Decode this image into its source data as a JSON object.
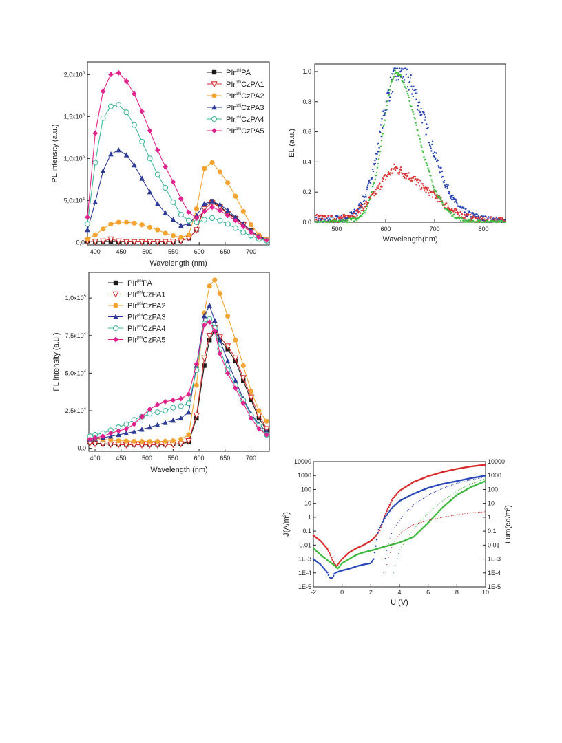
{
  "chart_data": [
    {
      "type": "line",
      "xlabel": "Wavelength (nm)",
      "ylabel": "PL intensity  (a.u.)",
      "xlim": [
        385,
        735
      ],
      "ylim": [
        -3000,
        215000
      ],
      "xticks": [
        "400",
        "450",
        "500",
        "550",
        "600",
        "650",
        "700"
      ],
      "yticks": [
        {
          "v": 0,
          "t": "0,0"
        },
        {
          "v": 50000,
          "t": "5,0x10",
          "sup": "4"
        },
        {
          "v": 100000,
          "t": "1,0x10",
          "sup": "5"
        },
        {
          "v": 150000,
          "t": "1,5x10",
          "sup": "5"
        },
        {
          "v": 200000,
          "t": "2,0x10",
          "sup": "5"
        }
      ],
      "legend_position": "top-right",
      "x": [
        385,
        400,
        415,
        430,
        445,
        460,
        475,
        490,
        505,
        520,
        535,
        550,
        565,
        580,
        595,
        610,
        625,
        640,
        655,
        670,
        685,
        700,
        715,
        730
      ],
      "series": [
        {
          "name": "PIr",
          "sup": "phi",
          "name_rest": "PA",
          "color": "#1a1a1a",
          "marker": "square",
          "values": [
            1500,
            1000,
            1000,
            1200,
            1000,
            800,
            800,
            800,
            800,
            800,
            900,
            1200,
            2000,
            5000,
            15000,
            43000,
            49000,
            43000,
            35000,
            29000,
            22000,
            14000,
            7000,
            4000
          ]
        },
        {
          "name": "PIr",
          "sup": "phi",
          "name_rest": "CzPA1",
          "color": "#d2302d",
          "marker": "triangle-down-open",
          "values": [
            1500,
            1200,
            1500,
            4000,
            1500,
            800,
            800,
            800,
            800,
            800,
            900,
            1200,
            2000,
            5000,
            15000,
            40000,
            47000,
            42000,
            34000,
            28000,
            21000,
            13000,
            6000,
            3000
          ]
        },
        {
          "name": "PIr",
          "sup": "phi",
          "name_rest": "CzPA2",
          "color": "#f4a433",
          "marker": "circle",
          "values": [
            4000,
            9000,
            16000,
            22000,
            24000,
            24000,
            23000,
            21000,
            18000,
            15000,
            11000,
            8000,
            6000,
            9000,
            40000,
            88000,
            95000,
            84000,
            71000,
            55000,
            37000,
            21000,
            9000,
            4000
          ]
        },
        {
          "name": "PIr",
          "sup": "phi",
          "name_rest": "CzPA3",
          "color": "#2e3b96",
          "marker": "triangle",
          "values": [
            15000,
            48000,
            85000,
            105000,
            110000,
            104000,
            92000,
            76000,
            60000,
            46000,
            35000,
            27000,
            20000,
            22000,
            32000,
            46000,
            49000,
            45000,
            38000,
            30000,
            22000,
            14000,
            7000,
            3000
          ]
        },
        {
          "name": "PIr",
          "sup": "phi",
          "name_rest": "CzPA4",
          "color": "#3fb89a",
          "marker": "circle-open",
          "values": [
            22000,
            95000,
            148000,
            162000,
            164000,
            155000,
            140000,
            120000,
            100000,
            81000,
            65000,
            48000,
            33000,
            26000,
            24000,
            27000,
            29000,
            26000,
            22000,
            17000,
            12000,
            8000,
            4000,
            2000
          ]
        },
        {
          "name": "PIr",
          "sup": "phi",
          "name_rest": "CzPA5",
          "color": "#e0238c",
          "marker": "diamond",
          "values": [
            30000,
            130000,
            180000,
            200000,
            202000,
            192000,
            177000,
            156000,
            133000,
            110000,
            90000,
            72000,
            52000,
            36000,
            29000,
            37000,
            42000,
            38000,
            32000,
            26000,
            19000,
            12000,
            6000,
            2500
          ]
        }
      ]
    },
    {
      "type": "scatter",
      "xlabel": "Wavelength(nm)",
      "ylabel": "EL (a.u.)",
      "xlim": [
        455,
        845
      ],
      "ylim": [
        0,
        1.05
      ],
      "xticks": [
        "500",
        "600",
        "700",
        "800"
      ],
      "yticks": [
        "0.0",
        "0.2",
        "0.4",
        "0.6",
        "0.8",
        "1.0"
      ],
      "series": [
        {
          "color": "#2542b0",
          "peak": 625,
          "width": 65,
          "amp": 1.0,
          "x": [
            460,
            480,
            500,
            520,
            540,
            560,
            580,
            600,
            610,
            620,
            630,
            640,
            650,
            660,
            680,
            700,
            720,
            740,
            760,
            780,
            800,
            820,
            840
          ],
          "values": [
            0.01,
            0.01,
            0.02,
            0.03,
            0.07,
            0.18,
            0.42,
            0.78,
            0.9,
            0.98,
            0.99,
            0.97,
            0.92,
            0.86,
            0.66,
            0.45,
            0.27,
            0.14,
            0.07,
            0.04,
            0.02,
            0.01,
            0.01
          ]
        },
        {
          "color": "#d83636",
          "peak": 625,
          "width": 80,
          "amp": 0.35,
          "x": [
            460,
            480,
            500,
            520,
            540,
            560,
            580,
            600,
            620,
            640,
            660,
            680,
            700,
            720,
            740,
            760,
            780,
            800
          ],
          "values": [
            0.03,
            0.02,
            0.02,
            0.03,
            0.06,
            0.12,
            0.2,
            0.3,
            0.36,
            0.32,
            0.28,
            0.22,
            0.18,
            0.12,
            0.07,
            0.04,
            0.02,
            0.01
          ]
        },
        {
          "color": "#3fbb3f",
          "peak": 620,
          "width": 45,
          "amp": 1.0,
          "x": [
            460,
            500,
            540,
            560,
            580,
            600,
            610,
            620,
            630,
            640,
            660,
            680,
            700,
            720,
            740,
            760,
            780,
            800,
            840
          ],
          "values": [
            0.0,
            0.0,
            0.02,
            0.08,
            0.3,
            0.72,
            0.92,
            1.0,
            0.97,
            0.9,
            0.68,
            0.42,
            0.22,
            0.1,
            0.04,
            0.01,
            0.0,
            0.0,
            0.0
          ]
        }
      ]
    },
    {
      "type": "line",
      "xlabel": "Wavelength  (nm)",
      "ylabel": "PL intensity  (a.u.)",
      "xlim": [
        388,
        735
      ],
      "ylim": [
        -2000,
        117000
      ],
      "xticks": [
        "400",
        "450",
        "500",
        "550",
        "600",
        "650",
        "700"
      ],
      "yticks": [
        {
          "v": 0,
          "t": "0,0"
        },
        {
          "v": 25000,
          "t": "2,5x10",
          "sup": "4"
        },
        {
          "v": 50000,
          "t": "5,0x10",
          "sup": "4"
        },
        {
          "v": 75000,
          "t": "7,5x10",
          "sup": "4"
        },
        {
          "v": 100000,
          "t": "1,0x10",
          "sup": "5"
        }
      ],
      "legend_position": "top-left",
      "x": [
        390,
        400,
        415,
        430,
        445,
        460,
        475,
        490,
        505,
        520,
        535,
        550,
        565,
        580,
        595,
        610,
        620,
        630,
        640,
        655,
        670,
        685,
        700,
        715,
        730
      ],
      "series": [
        {
          "name": "PIr",
          "sup": "phi",
          "name_rest": "PA",
          "color": "#1a1a1a",
          "marker": "square",
          "values": [
            4000,
            3500,
            3000,
            2800,
            2500,
            2400,
            2400,
            2400,
            2400,
            2400,
            2500,
            2700,
            3000,
            4000,
            20000,
            55000,
            72000,
            78000,
            72000,
            66000,
            58000,
            45000,
            32000,
            20000,
            12000
          ]
        },
        {
          "name": "PIr",
          "sup": "phi",
          "name_rest": "CzPA1",
          "color": "#d2302d",
          "marker": "triangle-down-open",
          "values": [
            3500,
            3000,
            2800,
            2600,
            2400,
            2300,
            2300,
            2300,
            2300,
            2300,
            2400,
            2600,
            3000,
            5000,
            22000,
            60000,
            75000,
            80000,
            74000,
            68000,
            60000,
            47000,
            34000,
            22000,
            13000
          ]
        },
        {
          "name": "PIr",
          "sup": "phi",
          "name_rest": "CzPA2",
          "color": "#f4a433",
          "marker": "circle",
          "values": [
            7000,
            6500,
            6000,
            5500,
            5000,
            4800,
            4700,
            4600,
            4600,
            4600,
            4700,
            5000,
            6000,
            9000,
            42000,
            90000,
            108000,
            112000,
            103000,
            88000,
            72000,
            55000,
            38000,
            25000,
            18000
          ]
        },
        {
          "name": "PIr",
          "sup": "phi",
          "name_rest": "CzPA3",
          "color": "#2e3b96",
          "marker": "triangle",
          "values": [
            6000,
            6500,
            7000,
            8000,
            9000,
            10000,
            11000,
            12500,
            14000,
            15500,
            17000,
            18500,
            20000,
            24000,
            55000,
            88000,
            95000,
            85000,
            72000,
            58000,
            45000,
            33000,
            23000,
            16000,
            11000
          ]
        },
        {
          "name": "PIr",
          "sup": "phi",
          "name_rest": "CzPA4",
          "color": "#3fb89a",
          "marker": "circle-open",
          "values": [
            8000,
            9000,
            10000,
            12000,
            14000,
            16000,
            19000,
            21000,
            23000,
            24000,
            25000,
            27000,
            28000,
            30000,
            52000,
            83000,
            86000,
            80000,
            66000,
            52000,
            42000,
            32000,
            22000,
            15000,
            9000
          ]
        },
        {
          "name": "PIr",
          "sup": "phi",
          "name_rest": "CzPA5",
          "color": "#e0238c",
          "marker": "diamond",
          "values": [
            6000,
            7000,
            8000,
            10000,
            11500,
            13000,
            16000,
            21000,
            26000,
            29000,
            31000,
            32000,
            33000,
            36000,
            56000,
            82000,
            84000,
            78000,
            63000,
            50000,
            40000,
            30000,
            20000,
            13000,
            9000
          ]
        }
      ]
    },
    {
      "type": "scatter",
      "xlabel": "U (V)",
      "ylabel": "J(A/m",
      "ylabel_sup": "2",
      "y2label": "Lum(cd/m",
      "y2label_sup": "2",
      "xlim": [
        -2,
        10
      ],
      "ylog": true,
      "ylim_exp": [
        -5,
        4
      ],
      "xticks": [
        "-2",
        "0",
        "2",
        "4",
        "6",
        "8",
        "10"
      ],
      "yticks": [
        "1E-5",
        "1E-4",
        "1E-3",
        "0.01",
        "0.1",
        "1",
        "10",
        "100",
        "1000",
        "10000"
      ],
      "y2ticks": [
        "1E-5",
        "1E-4",
        "1E-3",
        "0.01",
        "0.1",
        "1",
        "10",
        "100",
        "1000",
        "10000"
      ],
      "series": [
        {
          "color": "#d82a2a",
          "style": "dense-markers",
          "x": [
            -2,
            -1.5,
            -1,
            -0.6,
            -0.4,
            0,
            0.5,
            1,
            1.5,
            2,
            2.3,
            2.6,
            3,
            3.5,
            4,
            5,
            6,
            7,
            8,
            9,
            10
          ],
          "values": [
            0.05,
            0.02,
            0.005,
            0.0006,
            0.0003,
            0.001,
            0.003,
            0.006,
            0.01,
            0.02,
            0.04,
            0.1,
            1.5,
            20,
            80,
            350,
            900,
            1800,
            3000,
            4500,
            6000
          ]
        },
        {
          "color": "#2a49b8",
          "style": "dense-markers",
          "x": [
            -2,
            -1.5,
            -1,
            -0.9,
            -0.7,
            -0.5,
            0,
            0.5,
            1,
            1.5,
            2,
            2.2,
            2.5,
            3,
            3.5,
            4,
            5,
            6,
            7,
            8,
            9,
            10
          ],
          "values": [
            0.001,
            0.0004,
            0.0001,
            5e-05,
            4e-05,
            0.0001,
            0.00015,
            0.0002,
            0.0003,
            0.0004,
            0.0005,
            0.001,
            0.1,
            1,
            5,
            15,
            50,
            130,
            250,
            400,
            650,
            1000
          ]
        },
        {
          "color": "#3cb83c",
          "style": "dense-markers",
          "x": [
            -2,
            -1.5,
            -1,
            -0.6,
            -0.3,
            0,
            0.5,
            1,
            1.5,
            2,
            3,
            4,
            5,
            6,
            7,
            8,
            9,
            10
          ],
          "values": [
            0.006,
            0.002,
            0.0008,
            0.0004,
            0.0002,
            0.0005,
            0.001,
            0.002,
            0.003,
            0.004,
            0.008,
            0.015,
            0.04,
            0.4,
            5,
            40,
            150,
            400
          ]
        },
        {
          "color": "#d82a2a",
          "style": "thin-dashed",
          "x": [
            2.9,
            3,
            3.2,
            3.5,
            4,
            4.5,
            5,
            6,
            7,
            8,
            9,
            10
          ],
          "values": [
            1e-05,
            0.0001,
            0.001,
            0.01,
            0.06,
            0.15,
            0.3,
            0.6,
            1,
            1.5,
            2.1,
            2.5
          ]
        },
        {
          "color": "#2a49b8",
          "style": "thin-dashed",
          "x": [
            2.9,
            3,
            3.2,
            3.5,
            4,
            4.5,
            5,
            6,
            7,
            8,
            9,
            10
          ],
          "values": [
            0.0001,
            0.001,
            0.01,
            0.1,
            0.6,
            2.5,
            8,
            40,
            120,
            280,
            500,
            800
          ]
        },
        {
          "color": "#3cb83c",
          "style": "thin-dashed",
          "x": [
            3.6,
            3.8,
            4,
            4.5,
            5,
            5.5,
            6,
            7,
            8,
            9,
            10
          ],
          "values": [
            0.0001,
            0.001,
            0.004,
            0.03,
            0.15,
            0.6,
            2,
            15,
            80,
            250,
            600
          ]
        }
      ]
    }
  ]
}
